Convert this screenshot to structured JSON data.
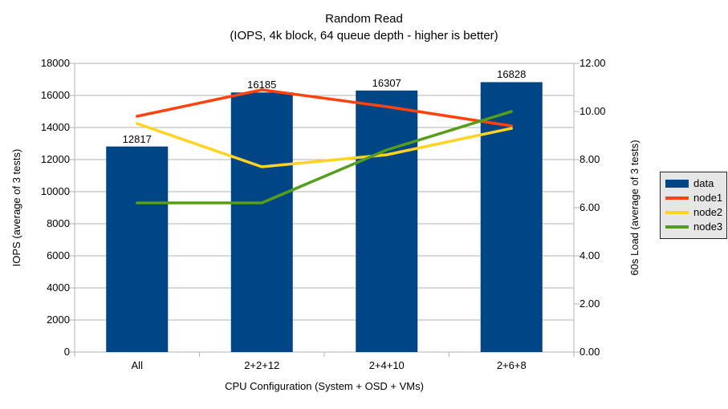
{
  "title": {
    "line1": "Random Read",
    "line2": "(IOPS, 4k block, 64 queue depth - higher is better)"
  },
  "chart_data": {
    "type": "bar+line",
    "categories": [
      "All",
      "2+2+12",
      "2+4+10",
      "2+6+8"
    ],
    "bars": {
      "name": "data",
      "color": "#004586",
      "axis": "left",
      "values": [
        12817,
        16185,
        16307,
        16828
      ],
      "value_labels": [
        "12817",
        "16185",
        "16307",
        "16828"
      ]
    },
    "series": [
      {
        "name": "node1",
        "color": "#FF420E",
        "axis": "right",
        "values": [
          9.8,
          10.9,
          10.2,
          9.4
        ]
      },
      {
        "name": "node2",
        "color": "#FFD320",
        "axis": "right",
        "values": [
          9.5,
          7.7,
          8.2,
          9.3
        ]
      },
      {
        "name": "node3",
        "color": "#579D1C",
        "axis": "right",
        "values": [
          6.2,
          6.2,
          8.4,
          10.0
        ]
      }
    ],
    "left_axis": {
      "title": "IOPS (average of 3 tests)",
      "min": 0,
      "max": 18000,
      "step": 2000,
      "tick_labels": [
        "0",
        "2000",
        "4000",
        "6000",
        "8000",
        "10000",
        "12000",
        "14000",
        "16000",
        "18000"
      ]
    },
    "right_axis": {
      "title": "60s Load (average of 3 tests)",
      "min": 0,
      "max": 12,
      "step": 2,
      "tick_labels": [
        "0.00",
        "2.00",
        "4.00",
        "6.00",
        "8.00",
        "10.00",
        "12.00"
      ]
    },
    "x_axis": {
      "title": "CPU Configuration (System + OSD + VMs)"
    },
    "grid": true,
    "legend_position": "right"
  },
  "colors": {
    "background": "#ffffff",
    "grid": "#b3b3b3",
    "axis": "#b3b3b3",
    "text": "#000000",
    "legend_bg": "#e6e6e6",
    "legend_border": "#262626"
  }
}
